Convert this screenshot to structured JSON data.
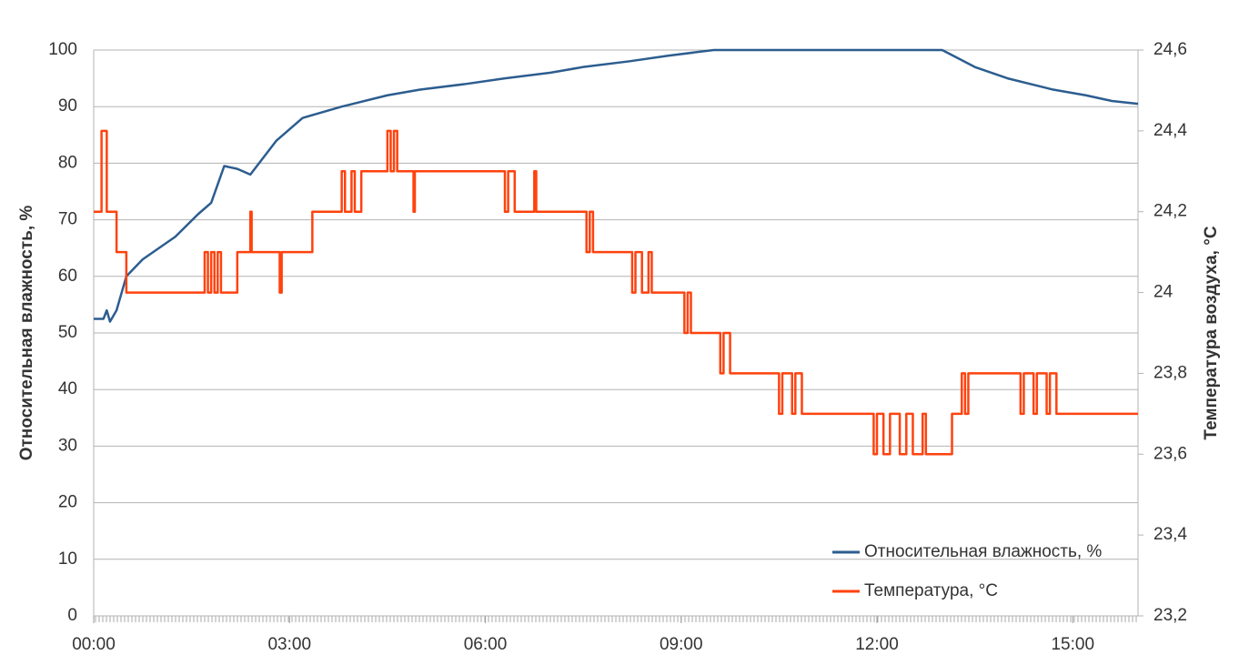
{
  "chart_data": {
    "type": "line",
    "y_label": "Относительная влажность, %",
    "y2_label": "Температура воздуха, °C",
    "xlim": [
      0,
      16
    ],
    "xticks": [
      {
        "value": 0,
        "label": "00:00"
      },
      {
        "value": 3,
        "label": "03:00"
      },
      {
        "value": 6,
        "label": "06:00"
      },
      {
        "value": 9,
        "label": "09:00"
      },
      {
        "value": 12,
        "label": "12:00"
      },
      {
        "value": 15,
        "label": "15:00"
      }
    ],
    "ylim": [
      0,
      100
    ],
    "yticks": [
      0,
      10,
      20,
      30,
      40,
      50,
      60,
      70,
      80,
      90,
      100
    ],
    "y2lim": [
      23.2,
      24.6
    ],
    "y2ticks": [
      {
        "value": 23.2,
        "label": "23,2"
      },
      {
        "value": 23.4,
        "label": "23,4"
      },
      {
        "value": 23.6,
        "label": "23,6"
      },
      {
        "value": 23.8,
        "label": "23,8"
      },
      24,
      {
        "value": 24.2,
        "label": "24,2"
      },
      {
        "value": 24.4,
        "label": "24,4"
      },
      {
        "value": 24.6,
        "label": "24,6"
      }
    ],
    "grid": true,
    "legend": "lower right",
    "series": [
      {
        "name": "Относительная влажность, %",
        "color": "#2c5d8f",
        "step": false,
        "x": [
          0,
          0.15,
          0.2,
          0.25,
          0.35,
          0.5,
          0.75,
          1.25,
          1.6,
          1.8,
          2.0,
          2.2,
          2.4,
          2.8,
          3.2,
          3.8,
          4.5,
          5,
          5.7,
          6.3,
          7,
          7.5,
          8.2,
          8.8,
          9.5,
          13,
          13.5,
          14,
          14.7,
          15.2,
          15.6,
          16
        ],
        "values": [
          52.5,
          52.5,
          54,
          52,
          54,
          60,
          63,
          67,
          71,
          73,
          79.5,
          79,
          78,
          84,
          88,
          90,
          92,
          93,
          94,
          95,
          96,
          97,
          98,
          99,
          100,
          100,
          97,
          95,
          93,
          92,
          91,
          90.5
        ]
      },
      {
        "name": "Температура, °C",
        "color": "#ff420e",
        "axis": "y2",
        "step": true,
        "x": [
          0,
          0.12,
          0.2,
          0.35,
          0.5,
          1.7,
          1.75,
          1.8,
          1.85,
          1.9,
          1.95,
          2.2,
          2.4,
          2.42,
          2.85,
          2.88,
          3.35,
          3.8,
          3.85,
          3.95,
          4.0,
          4.1,
          4.5,
          4.55,
          4.6,
          4.65,
          4.9,
          4.92,
          6.3,
          6.35,
          6.45,
          6.75,
          6.78,
          7.55,
          7.6,
          7.65,
          8.25,
          8.3,
          8.4,
          8.5,
          8.55,
          9.05,
          9.1,
          9.15,
          9.6,
          9.65,
          9.75,
          10.5,
          10.55,
          10.7,
          10.75,
          10.85,
          11.95,
          12.0,
          12.1,
          12.2,
          12.35,
          12.45,
          12.55,
          12.7,
          12.75,
          13.15,
          13.3,
          13.35,
          13.4,
          14.2,
          14.25,
          14.4,
          14.45,
          14.6,
          14.65,
          14.75,
          16
        ],
        "values": [
          24.2,
          24.4,
          24.2,
          24.1,
          24.0,
          24.1,
          24.0,
          24.1,
          24.0,
          24.1,
          24.0,
          24.1,
          24.2,
          24.1,
          24.0,
          24.1,
          24.2,
          24.3,
          24.2,
          24.3,
          24.2,
          24.3,
          24.4,
          24.3,
          24.4,
          24.3,
          24.2,
          24.3,
          24.2,
          24.3,
          24.2,
          24.3,
          24.2,
          24.1,
          24.2,
          24.1,
          24.0,
          24.1,
          24.0,
          24.1,
          24.0,
          23.9,
          24.0,
          23.9,
          23.8,
          23.9,
          23.8,
          23.7,
          23.8,
          23.7,
          23.8,
          23.7,
          23.6,
          23.7,
          23.6,
          23.7,
          23.6,
          23.7,
          23.6,
          23.7,
          23.6,
          23.7,
          23.8,
          23.7,
          23.8,
          23.7,
          23.8,
          23.7,
          23.8,
          23.7,
          23.8,
          23.7,
          23.7
        ]
      }
    ]
  }
}
